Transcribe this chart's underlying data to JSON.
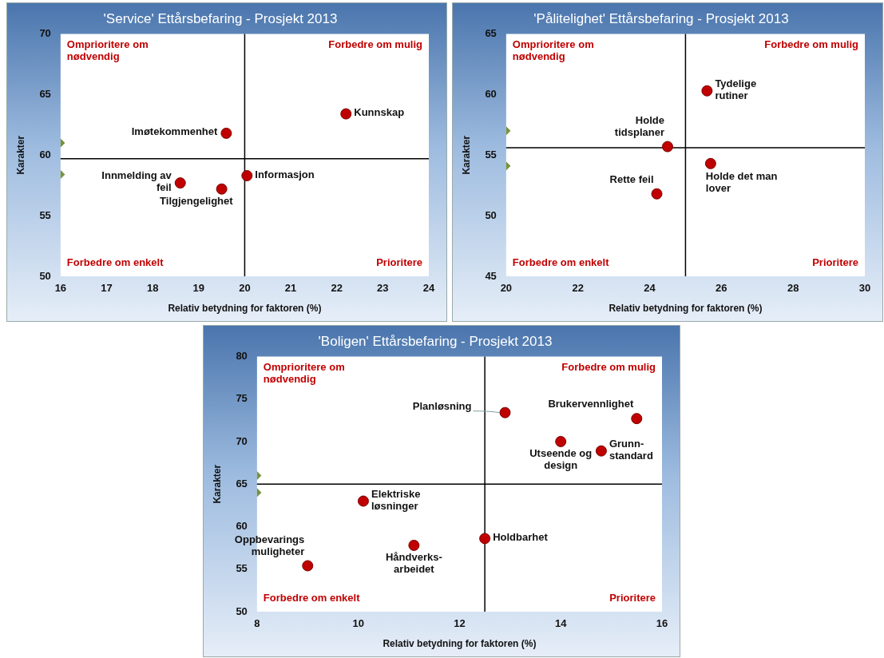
{
  "chart_data": [
    {
      "type": "scatter",
      "title": "'Service' Ettårsbefaring - Prosjekt 2013",
      "xlabel": "Relativ betydning for faktoren (%)",
      "ylabel": "Karakter",
      "series": [
        {
          "color": "#c00000",
          "marker": "circle",
          "x": [
            22.2,
            19.6,
            18.6,
            19.5,
            20.05
          ],
          "values": [
            63.4,
            61.8,
            57.7,
            57.2,
            58.3
          ]
        },
        {
          "color": "#77933c",
          "marker": "diamond",
          "x": [
            16,
            16
          ],
          "values": [
            61.0,
            58.4
          ]
        }
      ],
      "xlim": [
        16,
        24
      ],
      "xticks": [
        16,
        17,
        18,
        19,
        20,
        21,
        22,
        23,
        24
      ],
      "ylim": [
        50,
        70
      ],
      "yticks": [
        50,
        55,
        60,
        65,
        70
      ],
      "grid": false,
      "ref_lines": [
        {
          "axis": "x",
          "value": 20
        },
        {
          "axis": "y",
          "value": 59.7
        }
      ],
      "annotations": [
        "Omprioritere om\nnødvendig",
        "Forbedre om mulig",
        "Forbedre om enkelt",
        "Prioritere",
        {
          "text": "Kunnskap",
          "x": 22.2,
          "y": 63.4
        },
        {
          "text": "Imøtekommenhet",
          "x": 19.6,
          "y": 61.8
        },
        {
          "text": "Innmelding av\nfeil",
          "x": 18.6,
          "y": 57.7
        },
        {
          "text": "Tilgjengelighet",
          "x": 19.5,
          "y": 57.2
        },
        {
          "text": "Informasjon",
          "x": 20.05,
          "y": 58.3
        }
      ]
    },
    {
      "type": "scatter",
      "title": "'Pålitelighet' Ettårsbefaring - Prosjekt 2013",
      "xlabel": "Relativ betydning for faktoren (%)",
      "ylabel": "Karakter",
      "series": [
        {
          "color": "#c00000",
          "marker": "circle",
          "x": [
            25.6,
            24.5,
            25.7,
            24.2
          ],
          "values": [
            60.3,
            55.7,
            54.3,
            51.8
          ]
        },
        {
          "color": "#77933c",
          "marker": "diamond",
          "x": [
            20,
            20
          ],
          "values": [
            57.0,
            54.1
          ]
        }
      ],
      "xlim": [
        20,
        30
      ],
      "xticks": [
        20,
        22,
        24,
        26,
        28,
        30
      ],
      "ylim": [
        45,
        65
      ],
      "yticks": [
        45,
        50,
        55,
        60,
        65
      ],
      "grid": false,
      "ref_lines": [
        {
          "axis": "x",
          "value": 25
        },
        {
          "axis": "y",
          "value": 55.6
        }
      ],
      "annotations": [
        "Omprioritere om\nnødvendig",
        "Forbedre om mulig",
        "Forbedre om enkelt",
        "Prioritere",
        {
          "text": "Tydelige\nrutiner",
          "x": 25.6,
          "y": 60.3
        },
        {
          "text": "Holde\ntidsplaner",
          "x": 24.5,
          "y": 55.7
        },
        {
          "text": "Holde det man\nlover",
          "x": 25.7,
          "y": 54.3
        },
        {
          "text": "Rette feil",
          "x": 24.2,
          "y": 51.8
        }
      ]
    },
    {
      "type": "scatter",
      "title": "'Boligen' Ettårsbefaring - Prosjekt 2013",
      "xlabel": "Relativ betydning for faktoren (%)",
      "ylabel": "Karakter",
      "series": [
        {
          "color": "#c00000",
          "marker": "circle",
          "x": [
            12.9,
            15.5,
            14.0,
            14.8,
            10.1,
            12.5,
            11.1,
            9.0
          ],
          "values": [
            73.4,
            72.7,
            70.0,
            68.9,
            63.0,
            58.6,
            57.8,
            55.4
          ]
        },
        {
          "color": "#77933c",
          "marker": "diamond",
          "x": [
            8,
            8
          ],
          "values": [
            66.0,
            64.0
          ]
        }
      ],
      "xlim": [
        8,
        16
      ],
      "xticks": [
        8,
        10,
        12,
        14,
        16
      ],
      "ylim": [
        50,
        80
      ],
      "yticks": [
        50,
        55,
        60,
        65,
        70,
        75,
        80
      ],
      "grid": false,
      "ref_lines": [
        {
          "axis": "x",
          "value": 12.5
        },
        {
          "axis": "y",
          "value": 65
        }
      ],
      "annotations": [
        "Omprioritere om\nnødvendig",
        "Forbedre om mulig",
        "Forbedre om enkelt",
        "Prioritere",
        {
          "text": "Planløsning",
          "x": 12.9,
          "y": 73.4
        },
        {
          "text": "Brukervennlighet",
          "x": 15.5,
          "y": 72.7
        },
        {
          "text": "Utseende og\ndesign",
          "x": 14.0,
          "y": 70.0
        },
        {
          "text": "Grunn-\nstandard",
          "x": 14.8,
          "y": 68.9
        },
        {
          "text": "Elektriske\nløsninger",
          "x": 10.1,
          "y": 63.0
        },
        {
          "text": "Holdbarhet",
          "x": 12.5,
          "y": 58.6
        },
        {
          "text": "Håndverks-\narbeidet",
          "x": 11.1,
          "y": 57.8
        },
        {
          "text": "Oppbevarings\nmuligheter",
          "x": 9.0,
          "y": 55.4
        }
      ]
    }
  ]
}
